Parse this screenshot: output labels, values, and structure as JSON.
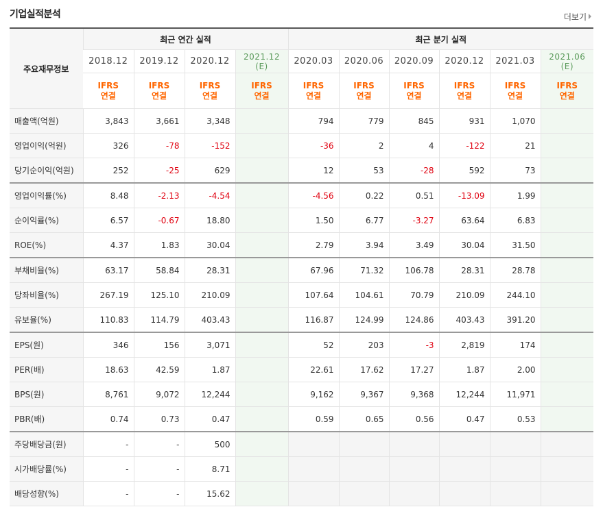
{
  "page_title": "기업실적분석",
  "more_label": "더보기",
  "header": {
    "row_label": "주요재무정보",
    "annual_group": "최근 연간 실적",
    "quarter_group": "최근 분기 실적",
    "annual_periods": [
      "2018.12",
      "2019.12",
      "2020.12"
    ],
    "annual_estimate": "2021.12",
    "quarter_periods": [
      "2020.03",
      "2020.06",
      "2020.09",
      "2020.12",
      "2021.03"
    ],
    "quarter_estimate": "2021.06",
    "estimate_mark": "(E)",
    "ifrs_line1": "IFRS",
    "ifrs_line2": "연결"
  },
  "rows": [
    {
      "label": "매출액(억원)",
      "annual": [
        "3,843",
        "3,661",
        "3,348"
      ],
      "quarter": [
        "794",
        "779",
        "845",
        "931",
        "1,070"
      ]
    },
    {
      "label": "영업이익(억원)",
      "annual": [
        "326",
        "-78",
        "-152"
      ],
      "quarter": [
        "-36",
        "2",
        "4",
        "-122",
        "21"
      ]
    },
    {
      "label": "당기순이익(억원)",
      "annual": [
        "252",
        "-25",
        "629"
      ],
      "quarter": [
        "12",
        "53",
        "-28",
        "592",
        "73"
      ]
    },
    {
      "label": "영업이익률(%)",
      "annual": [
        "8.48",
        "-2.13",
        "-4.54"
      ],
      "quarter": [
        "-4.56",
        "0.22",
        "0.51",
        "-13.09",
        "1.99"
      ]
    },
    {
      "label": "순이익률(%)",
      "annual": [
        "6.57",
        "-0.67",
        "18.80"
      ],
      "quarter": [
        "1.50",
        "6.77",
        "-3.27",
        "63.64",
        "6.83"
      ]
    },
    {
      "label": "ROE(%)",
      "annual": [
        "4.37",
        "1.83",
        "30.04"
      ],
      "quarter": [
        "2.79",
        "3.94",
        "3.49",
        "30.04",
        "31.50"
      ]
    },
    {
      "label": "부채비율(%)",
      "annual": [
        "63.17",
        "58.84",
        "28.31"
      ],
      "quarter": [
        "67.96",
        "71.32",
        "106.78",
        "28.31",
        "28.78"
      ]
    },
    {
      "label": "당좌비율(%)",
      "annual": [
        "267.19",
        "125.10",
        "210.09"
      ],
      "quarter": [
        "107.64",
        "104.61",
        "70.79",
        "210.09",
        "244.10"
      ]
    },
    {
      "label": "유보율(%)",
      "annual": [
        "110.83",
        "114.79",
        "403.43"
      ],
      "quarter": [
        "116.87",
        "124.99",
        "124.86",
        "403.43",
        "391.20"
      ]
    },
    {
      "label": "EPS(원)",
      "annual": [
        "346",
        "156",
        "3,071"
      ],
      "quarter": [
        "52",
        "203",
        "-3",
        "2,819",
        "174"
      ]
    },
    {
      "label": "PER(배)",
      "annual": [
        "18.63",
        "42.59",
        "1.87"
      ],
      "quarter": [
        "22.61",
        "17.62",
        "17.27",
        "1.87",
        "2.00"
      ]
    },
    {
      "label": "BPS(원)",
      "annual": [
        "8,761",
        "9,072",
        "12,244"
      ],
      "quarter": [
        "9,162",
        "9,367",
        "9,368",
        "12,244",
        "11,971"
      ]
    },
    {
      "label": "PBR(배)",
      "annual": [
        "0.74",
        "0.73",
        "0.47"
      ],
      "quarter": [
        "0.59",
        "0.65",
        "0.56",
        "0.47",
        "0.53"
      ]
    },
    {
      "label": "주당배당금(원)",
      "annual": [
        "-",
        "-",
        "500"
      ],
      "quarter": null
    },
    {
      "label": "시가배당률(%)",
      "annual": [
        "-",
        "-",
        "8.71"
      ],
      "quarter": null
    },
    {
      "label": "배당성향(%)",
      "annual": [
        "-",
        "-",
        "15.62"
      ],
      "quarter": null
    }
  ],
  "colors": {
    "negative": "#e0000f",
    "ifrs": "#ff6600",
    "estimate_bg": "#f1f8f1"
  }
}
